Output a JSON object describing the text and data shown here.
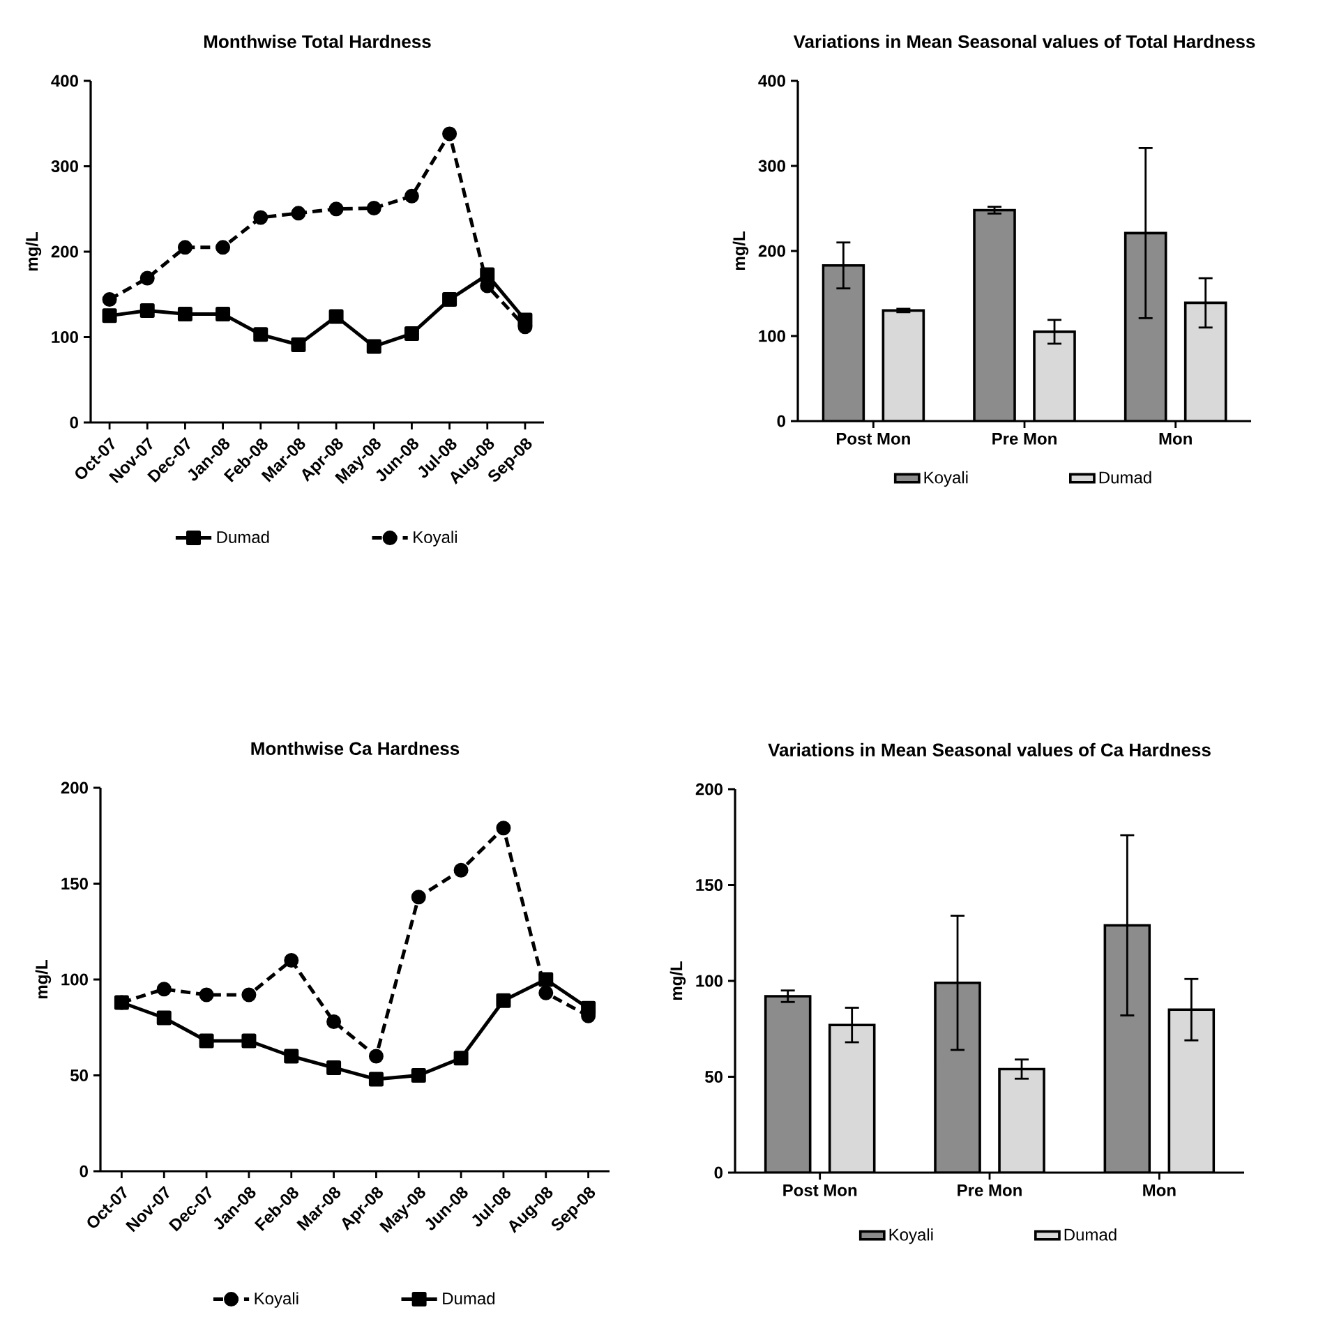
{
  "chart_data": [
    {
      "type": "line",
      "title": "Monthwise Total Hardness",
      "ylabel": "mg/L",
      "categories": [
        "Oct-07",
        "Nov-07",
        "Dec-07",
        "Jan-08",
        "Feb-08",
        "Mar-08",
        "Apr-08",
        "May-08",
        "Jun-08",
        "Jul-08",
        "Aug-08",
        "Sep-08"
      ],
      "series": [
        {
          "name": "Dumad",
          "color": "#000000",
          "line_style": "solid",
          "marker": "square",
          "values": [
            125,
            131,
            127,
            127,
            103,
            91,
            124,
            89,
            104,
            144,
            173,
            120
          ]
        },
        {
          "name": "Koyali",
          "color": "#000000",
          "line_style": "dashed",
          "marker": "circle",
          "values": [
            144,
            169,
            205,
            205,
            240,
            245,
            250,
            251,
            265,
            338,
            160,
            112
          ]
        }
      ],
      "ylim": [
        0,
        400
      ],
      "yticks": [
        0,
        100,
        200,
        300,
        400
      ],
      "legend": "bottom"
    },
    {
      "type": "bar",
      "title": "Variations in Mean Seasonal values of Total Hardness",
      "ylabel": "mg/L",
      "categories": [
        "Post Mon",
        "Pre Mon",
        "Mon"
      ],
      "series": [
        {
          "name": "Koyali",
          "color": "#8c8c8c",
          "values": [
            183,
            248,
            221
          ],
          "errors": [
            27,
            4,
            100
          ]
        },
        {
          "name": "Dumad",
          "color": "#d9d9d9",
          "values": [
            130,
            105,
            139
          ],
          "errors": [
            2,
            14,
            29
          ]
        }
      ],
      "ylim": [
        0,
        400
      ],
      "yticks": [
        0,
        100,
        200,
        300,
        400
      ],
      "legend": "bottom"
    },
    {
      "type": "line",
      "title": "Monthwise Ca Hardness",
      "ylabel": "mg/L",
      "categories": [
        "Oct-07",
        "Nov-07",
        "Dec-07",
        "Jan-08",
        "Feb-08",
        "Mar-08",
        "Apr-08",
        "May-08",
        "Jun-08",
        "Jul-08",
        "Aug-08",
        "Sep-08"
      ],
      "series": [
        {
          "name": "Koyali",
          "color": "#000000",
          "line_style": "dashed",
          "marker": "circle",
          "values": [
            88,
            95,
            92,
            92,
            110,
            78,
            60,
            143,
            157,
            179,
            93,
            81
          ]
        },
        {
          "name": "Dumad",
          "color": "#000000",
          "line_style": "solid",
          "marker": "square",
          "values": [
            88,
            80,
            68,
            68,
            60,
            54,
            48,
            50,
            59,
            89,
            100,
            85
          ]
        }
      ],
      "ylim": [
        0,
        200
      ],
      "yticks": [
        0,
        50,
        100,
        150,
        200
      ],
      "legend": "bottom"
    },
    {
      "type": "bar",
      "title": "Variations in Mean Seasonal values of Ca Hardness",
      "ylabel": "mg/L",
      "categories": [
        "Post Mon",
        "Pre Mon",
        "Mon"
      ],
      "series": [
        {
          "name": "Koyali",
          "color": "#8c8c8c",
          "values": [
            92,
            99,
            129
          ],
          "errors": [
            3,
            35,
            47
          ]
        },
        {
          "name": "Dumad",
          "color": "#d9d9d9",
          "values": [
            77,
            54,
            85
          ],
          "errors": [
            9,
            5,
            16
          ]
        }
      ],
      "ylim": [
        0,
        200
      ],
      "yticks": [
        0,
        50,
        100,
        150,
        200
      ],
      "legend": "bottom"
    }
  ]
}
